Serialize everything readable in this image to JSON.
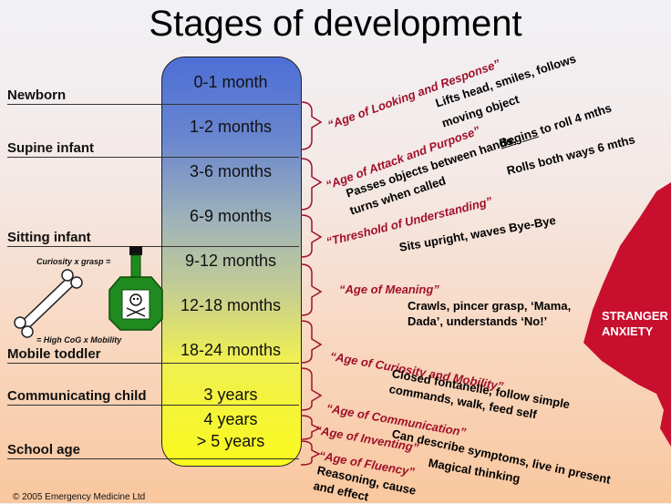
{
  "title": "Stages of development",
  "ages": [
    "0-1 month",
    "1-2 months",
    "3-6 months",
    "6-9 months",
    "9-12 months",
    "12-18 months",
    "18-24 months",
    "3 years",
    "4 years",
    "> 5 years"
  ],
  "stages": [
    "Newborn",
    "Supine infant",
    "Sitting infant",
    "Mobile toddler",
    "Communicating child",
    "School age"
  ],
  "quotes": [
    "“Age of Looking and Response”",
    "“Age of Attack and Purpose”",
    "“Threshold of Understanding”",
    "“Age of Meaning”",
    "“Age of Curiosity and Mobility”",
    "“Age of Communication”",
    "“Age of Inventing”",
    "“Age of Fluency”"
  ],
  "descriptions": {
    "d1a": "Lifts head, smiles, follows",
    "d1b": "moving object",
    "d2_begins": "Begins",
    "d2a": "to roll 4 mths",
    "d2b": "Passes objects between hands,",
    "d2c": "turns when called",
    "d2d": "Rolls both ways 6 mths",
    "d3": "Sits upright, waves Bye-Bye",
    "d4a": "Crawls, pincer grasp, ‘Mama,",
    "d4b": "Dada’, understands ‘No!’",
    "d5a": "Closed fontanelle, follow simple",
    "d5b": "commands, walk, feed self",
    "d6": "Can describe symptoms, live in present",
    "d7": "Magical thinking",
    "d8a": "Reasoning, cause",
    "d8b": "and effect"
  },
  "side": {
    "curiosity": "Curiosity x grasp =",
    "high_cog": "= High CoG x Mobility"
  },
  "stranger": {
    "line1": "STRANGER",
    "line2": "ANXIETY"
  },
  "copyright": "© 2005 Emergency Medicine Ltd",
  "colors": {
    "quote": "#a0102a",
    "stranger": "#c8102e",
    "poison": "#1f8a1f"
  }
}
